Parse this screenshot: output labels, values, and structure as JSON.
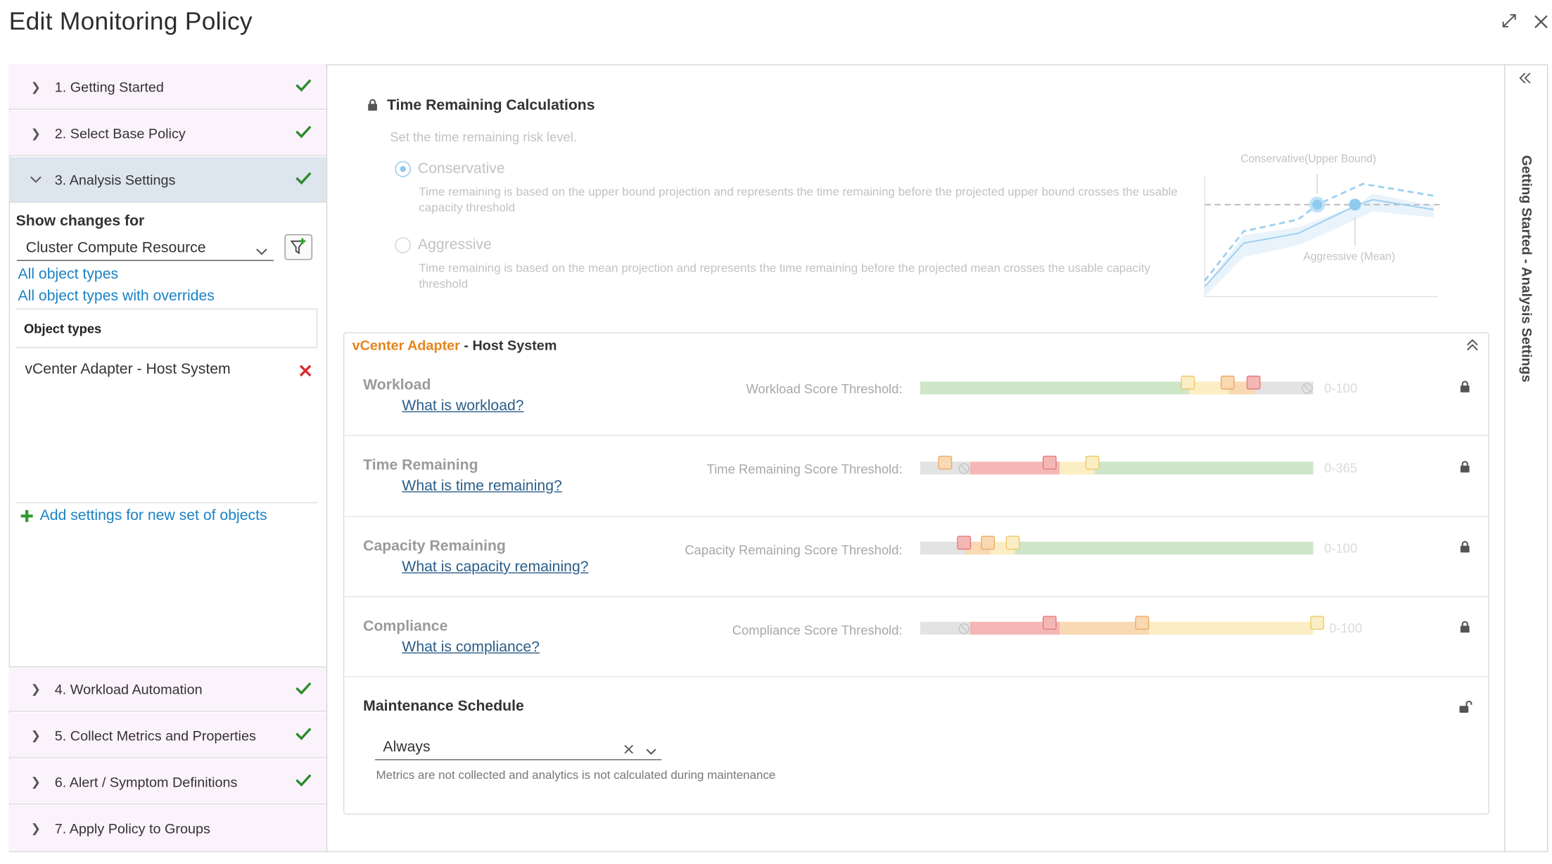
{
  "dialog": {
    "title": "Edit Monitoring Policy"
  },
  "steps": [
    {
      "label": "1. Getting Started",
      "done": true
    },
    {
      "label": "2. Select Base Policy",
      "done": true
    },
    {
      "label": "3. Analysis Settings",
      "done": true,
      "active": true
    },
    {
      "label": "4. Workload Automation",
      "done": true
    },
    {
      "label": "5. Collect Metrics and Properties",
      "done": true
    },
    {
      "label": "6. Alert / Symptom Definitions",
      "done": true
    },
    {
      "label": "7. Apply Policy to Groups",
      "done": false
    }
  ],
  "left": {
    "show_changes_label": "Show changes for",
    "select_value": "Cluster Compute Resource",
    "link_all_types": "All object types",
    "link_overrides": "All object types with overrides",
    "table_header": "Object types",
    "object_row": "vCenter Adapter - Host System",
    "add_settings": "Add settings for new set of objects"
  },
  "time_calc": {
    "title": "Time Remaining Calculations",
    "subtitle": "Set the time remaining risk level.",
    "conservative_label": "Conservative",
    "conservative_desc": "Time remaining is based on the upper bound projection and represents the time remaining before the projected upper bound crosses the usable capacity threshold",
    "aggressive_label": "Aggressive",
    "aggressive_desc": "Time remaining is based on the mean projection and represents the time remaining before the projected mean crosses the usable capacity threshold",
    "selected": "conservative",
    "diagram_upper": "Conservative(Upper Bound)",
    "diagram_mean": "Aggressive (Mean)"
  },
  "card": {
    "adapter": "vCenter Adapter",
    "separator": " - ",
    "object": "Host System"
  },
  "metrics": [
    {
      "title": "Workload",
      "link": "What is workload?",
      "label": "Workload Score Threshold:",
      "range": "0-100"
    },
    {
      "title": "Time Remaining",
      "link": "What is time remaining?",
      "label": "Time Remaining Score Threshold:",
      "range": "0-365"
    },
    {
      "title": "Capacity Remaining",
      "link": "What is capacity remaining?",
      "label": "Capacity Remaining Score Threshold:",
      "range": "0-100"
    },
    {
      "title": "Compliance",
      "link": "What is compliance?",
      "label": "Compliance Score Threshold:",
      "range": "0-100"
    }
  ],
  "maintenance": {
    "title": "Maintenance Schedule",
    "value": "Always",
    "note": "Metrics are not collected and analytics is not calculated during maintenance"
  },
  "right_tab": {
    "label": "Getting Started - Analysis Settings"
  },
  "colors": {
    "green": "#cfe5c8",
    "yellow": "#fbeec4",
    "orange": "#f8d9b3",
    "red": "#f4b7b5",
    "gray": "#e3e3e3",
    "check": "#2e8b2e",
    "remove": "#d92c2c",
    "link": "#1a82c4",
    "adapter": "#e5841a"
  }
}
